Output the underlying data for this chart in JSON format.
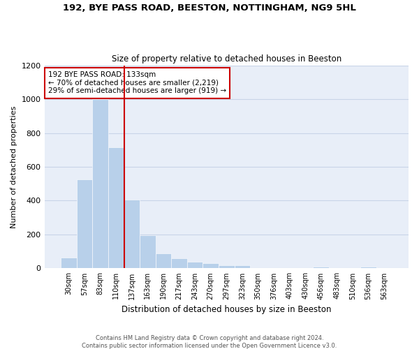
{
  "title1": "192, BYE PASS ROAD, BEESTON, NOTTINGHAM, NG9 5HL",
  "title2": "Size of property relative to detached houses in Beeston",
  "xlabel": "Distribution of detached houses by size in Beeston",
  "ylabel": "Number of detached properties",
  "footer_line1": "Contains HM Land Registry data © Crown copyright and database right 2024.",
  "footer_line2": "Contains public sector information licensed under the Open Government Licence v3.0.",
  "annotation_line1": "192 BYE PASS ROAD: 133sqm",
  "annotation_line2": "← 70% of detached houses are smaller (2,219)",
  "annotation_line3": "29% of semi-detached houses are larger (919) →",
  "bar_categories": [
    "30sqm",
    "57sqm",
    "83sqm",
    "110sqm",
    "137sqm",
    "163sqm",
    "190sqm",
    "217sqm",
    "243sqm",
    "270sqm",
    "297sqm",
    "323sqm",
    "350sqm",
    "376sqm",
    "403sqm",
    "430sqm",
    "456sqm",
    "483sqm",
    "510sqm",
    "536sqm",
    "563sqm"
  ],
  "bar_values": [
    65,
    525,
    1000,
    715,
    405,
    195,
    88,
    58,
    40,
    32,
    18,
    18,
    0,
    0,
    0,
    0,
    12,
    0,
    0,
    12,
    0
  ],
  "bar_color": "#b8d0ea",
  "vline_color": "#cc0000",
  "vline_x": 3.5,
  "annotation_box_edge_color": "#cc0000",
  "ylim": [
    0,
    1200
  ],
  "yticks": [
    0,
    200,
    400,
    600,
    800,
    1000,
    1200
  ],
  "grid_color": "#c8d4e8",
  "bg_color": "#e8eef8"
}
